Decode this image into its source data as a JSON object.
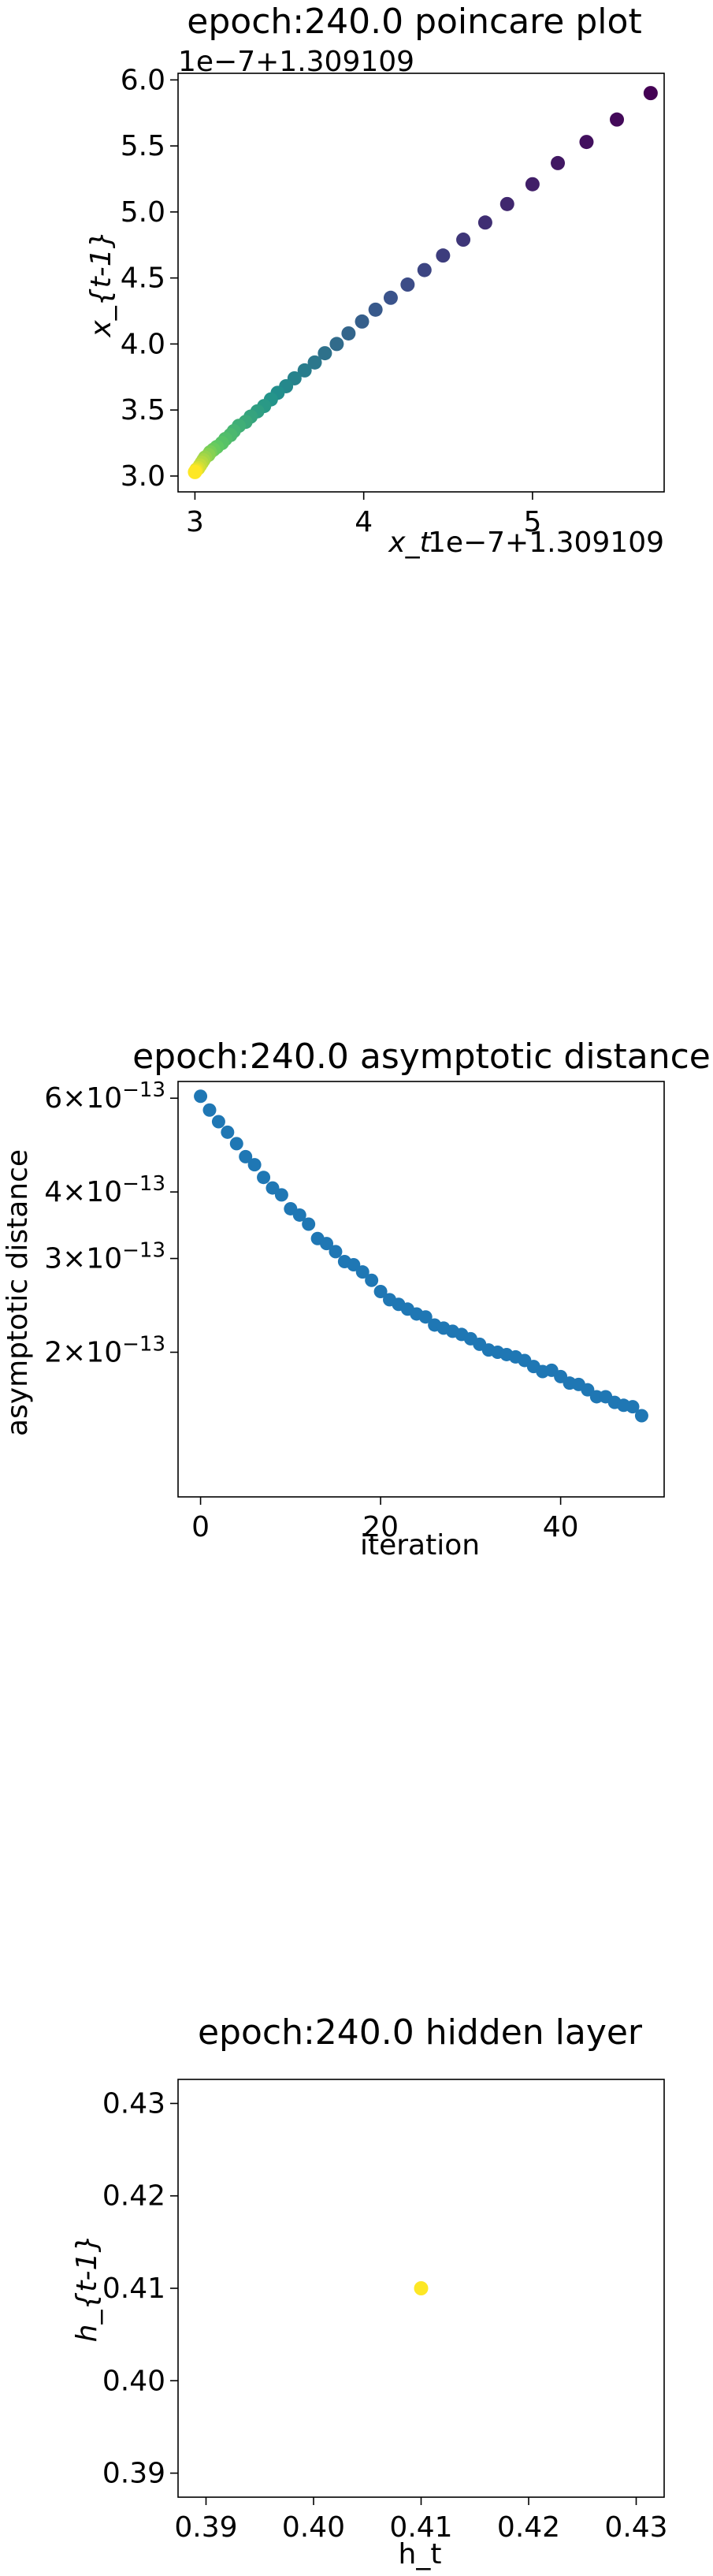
{
  "chart_data": [
    {
      "type": "scatter",
      "title": "epoch:240.0 poincare plot",
      "xlabel": "x_t",
      "ylabel": "x_{t-1}",
      "x_offset_text": "1e−7+1.309109",
      "y_offset_text": "1e−7+1.309109",
      "xlim": [
        2.9,
        5.78
      ],
      "ylim": [
        2.88,
        6.05
      ],
      "xticks": [
        3,
        4,
        5
      ],
      "xtick_labels": [
        "3",
        "4",
        "5"
      ],
      "yticks": [
        3.0,
        3.5,
        4.0,
        4.5,
        5.0,
        5.5,
        6.0
      ],
      "ytick_labels": [
        "3.0",
        "3.5",
        "4.0",
        "4.5",
        "5.0",
        "5.5",
        "6.0"
      ],
      "colormap": "viridis",
      "grid": false,
      "points": [
        [
          5.7,
          5.9
        ],
        [
          5.5,
          5.7
        ],
        [
          5.32,
          5.53
        ],
        [
          5.15,
          5.37
        ],
        [
          5.0,
          5.21
        ],
        [
          4.85,
          5.06
        ],
        [
          4.72,
          4.92
        ],
        [
          4.59,
          4.79
        ],
        [
          4.47,
          4.67
        ],
        [
          4.36,
          4.56
        ],
        [
          4.26,
          4.45
        ],
        [
          4.16,
          4.35
        ],
        [
          4.07,
          4.26
        ],
        [
          3.99,
          4.17
        ],
        [
          3.91,
          4.08
        ],
        [
          3.84,
          4.0
        ],
        [
          3.77,
          3.93
        ],
        [
          3.71,
          3.86
        ],
        [
          3.65,
          3.8
        ],
        [
          3.59,
          3.74
        ],
        [
          3.54,
          3.68
        ],
        [
          3.49,
          3.63
        ],
        [
          3.45,
          3.58
        ],
        [
          3.41,
          3.53
        ],
        [
          3.37,
          3.49
        ],
        [
          3.33,
          3.45
        ],
        [
          3.3,
          3.41
        ],
        [
          3.26,
          3.38
        ],
        [
          3.23,
          3.34
        ],
        [
          3.21,
          3.31
        ],
        [
          3.18,
          3.28
        ],
        [
          3.16,
          3.25
        ],
        [
          3.13,
          3.22
        ],
        [
          3.11,
          3.2
        ],
        [
          3.09,
          3.18
        ],
        [
          3.08,
          3.16
        ],
        [
          3.06,
          3.14
        ],
        [
          3.05,
          3.12
        ],
        [
          3.04,
          3.1
        ],
        [
          3.03,
          3.08
        ],
        [
          3.02,
          3.06
        ],
        [
          3.01,
          3.05
        ],
        [
          3.005,
          3.04
        ],
        [
          3.0,
          3.03
        ]
      ]
    },
    {
      "type": "scatter",
      "title": "epoch:240.0 asymptotic distance",
      "xlabel": "iteration",
      "ylabel": "asymptotic distance",
      "yscale": "log",
      "color": "#1f77b4",
      "xlim": [
        -2.5,
        51.5
      ],
      "ylim": [
        1.07e-13,
        6.45e-13
      ],
      "xticks": [
        0,
        20,
        40
      ],
      "xtick_labels": [
        "0",
        "20",
        "40"
      ],
      "yticks": [
        2e-13,
        3e-13,
        4e-13,
        6e-13
      ],
      "ytick_mantissas": [
        "2",
        "3",
        "4",
        "6"
      ],
      "ytick_exponent": "−13",
      "grid": false,
      "x": [
        0,
        1,
        2,
        3,
        4,
        5,
        6,
        7,
        8,
        9,
        10,
        11,
        12,
        13,
        14,
        15,
        16,
        17,
        18,
        19,
        20,
        21,
        22,
        23,
        24,
        25,
        26,
        27,
        28,
        29,
        30,
        31,
        32,
        33,
        34,
        35,
        36,
        37,
        38,
        39,
        40,
        41,
        42,
        43,
        44,
        45,
        46,
        47,
        48,
        49
      ],
      "values": [
        6.05e-13,
        5.7e-13,
        5.42e-13,
        5.18e-13,
        4.93e-13,
        4.66e-13,
        4.5e-13,
        4.26e-13,
        4.07e-13,
        3.95e-13,
        3.72e-13,
        3.62e-13,
        3.48e-13,
        3.27e-13,
        3.2e-13,
        3.09e-13,
        2.96e-13,
        2.92e-13,
        2.83e-13,
        2.73e-13,
        2.6e-13,
        2.51e-13,
        2.46e-13,
        2.41e-13,
        2.36e-13,
        2.33e-13,
        2.25e-13,
        2.22e-13,
        2.19e-13,
        2.16e-13,
        2.12e-13,
        2.07e-13,
        2.02e-13,
        2e-13,
        1.98e-13,
        1.96e-13,
        1.93e-13,
        1.88e-13,
        1.84e-13,
        1.85e-13,
        1.8e-13,
        1.75e-13,
        1.74e-13,
        1.7e-13,
        1.65e-13,
        1.65e-13,
        1.61e-13,
        1.59e-13,
        1.58e-13,
        1.52e-13
      ]
    },
    {
      "type": "scatter",
      "title": "epoch:240.0 hidden layer",
      "xlabel": "h_t",
      "ylabel": "h_{t-1}",
      "xlim": [
        0.3874,
        0.4326
      ],
      "ylim": [
        0.3874,
        0.4326
      ],
      "xticks": [
        0.39,
        0.4,
        0.41,
        0.42,
        0.43
      ],
      "xtick_labels": [
        "0.39",
        "0.40",
        "0.41",
        "0.42",
        "0.43"
      ],
      "yticks": [
        0.39,
        0.4,
        0.41,
        0.42,
        0.43
      ],
      "ytick_labels": [
        "0.39",
        "0.40",
        "0.41",
        "0.42",
        "0.43"
      ],
      "color": "#fde725",
      "grid": false,
      "x": [
        0.41
      ],
      "values": [
        0.41
      ]
    }
  ]
}
